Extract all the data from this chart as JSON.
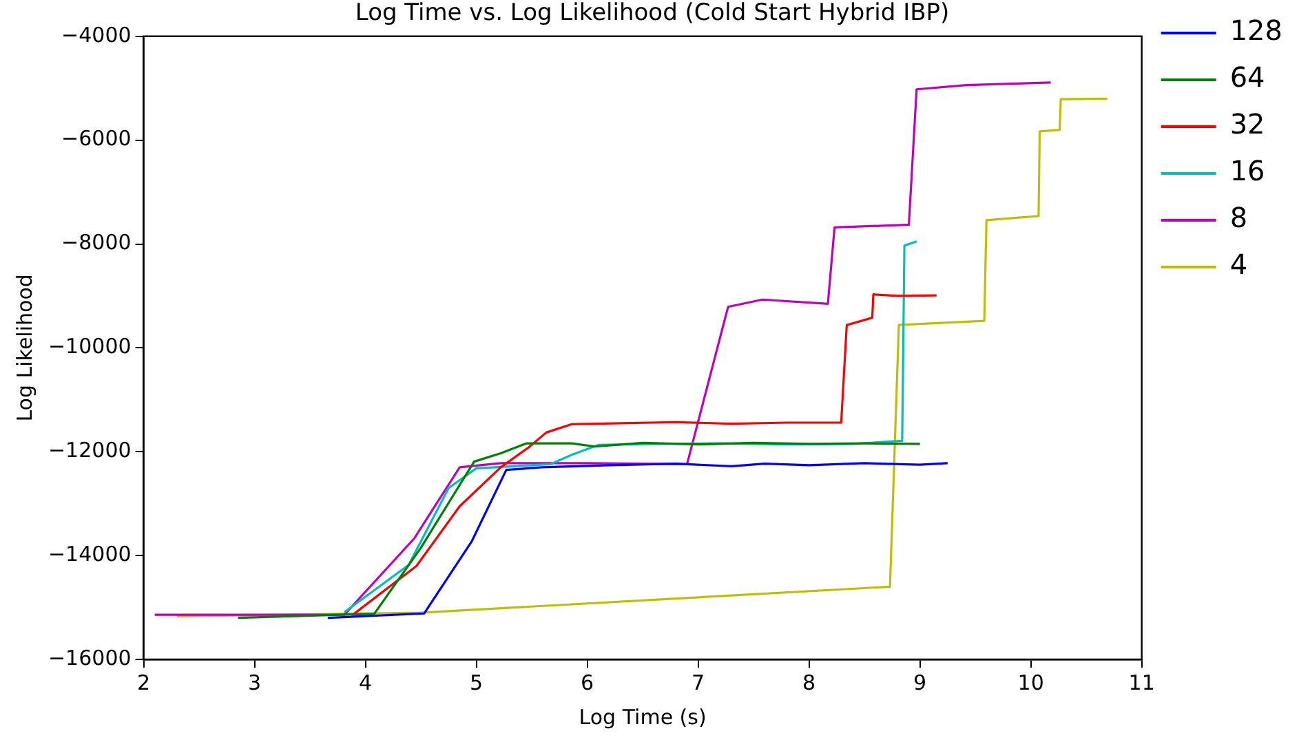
{
  "chart_data": {
    "type": "line",
    "title": "Log Time vs. Log Likelihood (Cold Start Hybrid IBP)",
    "xlabel": "Log Time (s)",
    "ylabel": "Log Likelihood",
    "xlim": [
      2,
      11
    ],
    "xticks": [
      2,
      3,
      4,
      5,
      6,
      7,
      8,
      9,
      10,
      11
    ],
    "ylim": [
      -16000,
      -4000
    ],
    "yticks": [
      -16000,
      -14000,
      -12000,
      -10000,
      -8000,
      -6000,
      -4000
    ],
    "grid": false,
    "legend": "right",
    "marker": "none",
    "line_style": "solid",
    "series": [
      {
        "name": "128",
        "color": "#0000ff",
        "x": [
          3.66,
          4.53,
          4.96,
          5.27,
          5.59,
          6.2,
          6.8,
          7.3,
          7.6,
          8.0,
          8.5,
          9.0,
          9.25
        ],
        "values": [
          -15200,
          -15115,
          -13720,
          -12350,
          -12300,
          -12260,
          -12230,
          -12280,
          -12230,
          -12260,
          -12220,
          -12250,
          -12220
        ]
      },
      {
        "name": "64",
        "color": "#008000",
        "x": [
          2.85,
          4.08,
          4.5,
          4.98,
          5.22,
          5.45,
          5.86,
          6.07,
          6.5,
          7.0,
          7.5,
          8.0,
          8.5,
          9.0
        ],
        "values": [
          -15200,
          -15120,
          -13850,
          -12190,
          -12030,
          -11840,
          -11840,
          -11900,
          -11830,
          -11860,
          -11830,
          -11850,
          -11840,
          -11850
        ]
      },
      {
        "name": "32",
        "color": "#ff0000",
        "x": [
          3.88,
          4.46,
          4.85,
          5.22,
          5.47,
          5.63,
          5.86,
          6.3,
          6.8,
          7.3,
          7.8,
          8.29,
          8.34,
          8.57,
          8.58,
          8.8,
          9.15
        ],
        "values": [
          -15150,
          -14200,
          -13050,
          -12300,
          -11920,
          -11630,
          -11470,
          -11450,
          -11430,
          -11460,
          -11440,
          -11440,
          -9560,
          -9420,
          -8970,
          -9000,
          -8990
        ]
      },
      {
        "name": "16",
        "color": "#00bfbf",
        "x": [
          3.81,
          4.39,
          4.75,
          5.0,
          5.67,
          5.86,
          6.1,
          6.6,
          7.2,
          7.8,
          8.4,
          8.84,
          8.86,
          8.97
        ],
        "values": [
          -15090,
          -14180,
          -12700,
          -12320,
          -12240,
          -12060,
          -11870,
          -11850,
          -11840,
          -11860,
          -11850,
          -11790,
          -8030,
          -7950
        ]
      },
      {
        "name": "8",
        "color": "#bf00bf",
        "x": [
          2.1,
          3.81,
          4.44,
          4.85,
          5.22,
          6.0,
          6.9,
          7.27,
          7.58,
          8.17,
          8.23,
          8.88,
          8.9,
          8.97,
          9.42,
          10.18
        ],
        "values": [
          -15140,
          -15140,
          -13670,
          -12300,
          -12220,
          -12220,
          -12240,
          -9210,
          -9070,
          -9150,
          -7680,
          -7630,
          -7630,
          -5020,
          -4940,
          -4890
        ]
      },
      {
        "name": "4",
        "color": "#bfbf00",
        "x": [
          2.3,
          4.5,
          8.73,
          8.81,
          9.58,
          9.6,
          10.07,
          10.08,
          10.26,
          10.27,
          10.69
        ],
        "values": [
          -15170,
          -15100,
          -14600,
          -9560,
          -9480,
          -7540,
          -7460,
          -5830,
          -5800,
          -5210,
          -5200
        ]
      }
    ]
  }
}
